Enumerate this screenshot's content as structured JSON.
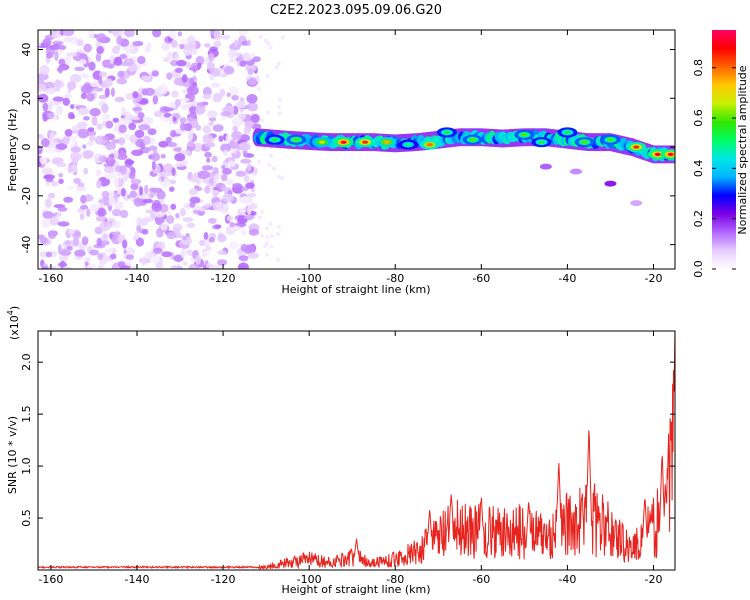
{
  "figure_title": "C2E2.2023.095.09.06.G20",
  "chart_data": [
    {
      "type": "heatmap",
      "xlabel": "Height of straight line (km)",
      "ylabel": "Frequency (Hz)",
      "xlim": [
        -163,
        -15
      ],
      "ylim": [
        -50,
        48
      ],
      "xticks": [
        -160,
        -140,
        -120,
        -100,
        -80,
        -60,
        -40,
        -20
      ],
      "yticks": [
        -40,
        -20,
        0,
        20,
        40
      ],
      "grid": false,
      "colorbar": {
        "label": "Normalized spectral amplitude",
        "range": [
          0,
          0.95
        ],
        "ticks": [
          "0.0",
          "0.2",
          "0.4",
          "0.6",
          "0.8"
        ],
        "colormap": [
          "#ffffff",
          "#e6ccff",
          "#b266ff",
          "#7a00e6",
          "#0000ff",
          "#00b4ff",
          "#00e6e6",
          "#00ff64",
          "#32e600",
          "#c8f000",
          "#ffc800",
          "#ff6400",
          "#ff0000",
          "#ff0064"
        ]
      },
      "noise_region": {
        "x_range": [
          -163,
          -112
        ],
        "y_range": [
          -50,
          48
        ],
        "amplitude_range": [
          0.02,
          0.15
        ]
      },
      "ridge": [
        {
          "x": -112,
          "y": 4
        },
        {
          "x": -105,
          "y": 3
        },
        {
          "x": -100,
          "y": 2.5
        },
        {
          "x": -95,
          "y": 2
        },
        {
          "x": -90,
          "y": 2
        },
        {
          "x": -85,
          "y": 2
        },
        {
          "x": -80,
          "y": 1.5
        },
        {
          "x": -75,
          "y": 2
        },
        {
          "x": -70,
          "y": 3
        },
        {
          "x": -65,
          "y": 4
        },
        {
          "x": -60,
          "y": 4
        },
        {
          "x": -55,
          "y": 3.5
        },
        {
          "x": -50,
          "y": 4
        },
        {
          "x": -45,
          "y": 4
        },
        {
          "x": -40,
          "y": 3
        },
        {
          "x": -35,
          "y": 2
        },
        {
          "x": -30,
          "y": 2
        },
        {
          "x": -25,
          "y": 0
        },
        {
          "x": -20,
          "y": -3
        },
        {
          "x": -15,
          "y": -3
        }
      ],
      "ridge_peaks": [
        {
          "x": -108,
          "y": 3,
          "amplitude": 0.55
        },
        {
          "x": -103,
          "y": 3,
          "amplitude": 0.6
        },
        {
          "x": -97,
          "y": 2,
          "amplitude": 0.7
        },
        {
          "x": -92,
          "y": 2,
          "amplitude": 0.9
        },
        {
          "x": -87,
          "y": 2,
          "amplitude": 0.85
        },
        {
          "x": -82,
          "y": 2,
          "amplitude": 0.75
        },
        {
          "x": -77,
          "y": 1,
          "amplitude": 0.5
        },
        {
          "x": -72,
          "y": 1,
          "amplitude": 0.8
        },
        {
          "x": -68,
          "y": 6,
          "amplitude": 0.55
        },
        {
          "x": -62,
          "y": 3,
          "amplitude": 0.6
        },
        {
          "x": -50,
          "y": 5,
          "amplitude": 0.6
        },
        {
          "x": -46,
          "y": 2,
          "amplitude": 0.55
        },
        {
          "x": -40,
          "y": 6,
          "amplitude": 0.55
        },
        {
          "x": -36,
          "y": 2,
          "amplitude": 0.6
        },
        {
          "x": -30,
          "y": 3,
          "amplitude": 0.6
        },
        {
          "x": -24,
          "y": 0,
          "amplitude": 0.85
        },
        {
          "x": -19,
          "y": -3,
          "amplitude": 0.9
        },
        {
          "x": -16,
          "y": -3,
          "amplitude": 0.9
        }
      ],
      "secondary_band": [
        {
          "x": -45,
          "y": -8,
          "amplitude": 0.15
        },
        {
          "x": -38,
          "y": -10,
          "amplitude": 0.12
        },
        {
          "x": -30,
          "y": -15,
          "amplitude": 0.2
        },
        {
          "x": -24,
          "y": -23,
          "amplitude": 0.1
        }
      ]
    },
    {
      "type": "line",
      "xlabel": "Height of straight line (km)",
      "ylabel": "SNR (10 * v/v)",
      "y_multiplier": "(x10",
      "y_multiplier_exp": "4",
      "y_multiplier_close": ")",
      "xlim": [
        -163,
        -15
      ],
      "ylim": [
        0,
        2.3
      ],
      "xticks": [
        -160,
        -140,
        -120,
        -100,
        -80,
        -60,
        -40,
        -20
      ],
      "yticks": [
        "0.5",
        "1.0",
        "1.5",
        "2.0"
      ],
      "grid": false,
      "color": "#e8221c",
      "envelope": [
        {
          "x": -163,
          "y": 0.02
        },
        {
          "x": -115,
          "y": 0.02
        },
        {
          "x": -110,
          "y": 0.05
        },
        {
          "x": -105,
          "y": 0.12
        },
        {
          "x": -100,
          "y": 0.18
        },
        {
          "x": -95,
          "y": 0.12
        },
        {
          "x": -90,
          "y": 0.22
        },
        {
          "x": -85,
          "y": 0.12
        },
        {
          "x": -80,
          "y": 0.18
        },
        {
          "x": -75,
          "y": 0.3
        },
        {
          "x": -70,
          "y": 0.55
        },
        {
          "x": -65,
          "y": 0.7
        },
        {
          "x": -60,
          "y": 0.65
        },
        {
          "x": -55,
          "y": 0.6
        },
        {
          "x": -50,
          "y": 0.65
        },
        {
          "x": -45,
          "y": 0.55
        },
        {
          "x": -40,
          "y": 0.75
        },
        {
          "x": -35,
          "y": 0.9
        },
        {
          "x": -30,
          "y": 0.65
        },
        {
          "x": -25,
          "y": 0.35
        },
        {
          "x": -20,
          "y": 0.7
        },
        {
          "x": -17,
          "y": 1.0
        },
        {
          "x": -15,
          "y": 2.3
        }
      ],
      "spikes": [
        {
          "x": -89,
          "y": 0.3
        },
        {
          "x": -72,
          "y": 0.6
        },
        {
          "x": -67,
          "y": 0.75
        },
        {
          "x": -60,
          "y": 0.72
        },
        {
          "x": -49,
          "y": 0.68
        },
        {
          "x": -42,
          "y": 1.05
        },
        {
          "x": -35,
          "y": 1.4
        },
        {
          "x": -22,
          "y": 0.72
        },
        {
          "x": -18,
          "y": 1.15
        },
        {
          "x": -15,
          "y": 2.3
        }
      ]
    }
  ]
}
